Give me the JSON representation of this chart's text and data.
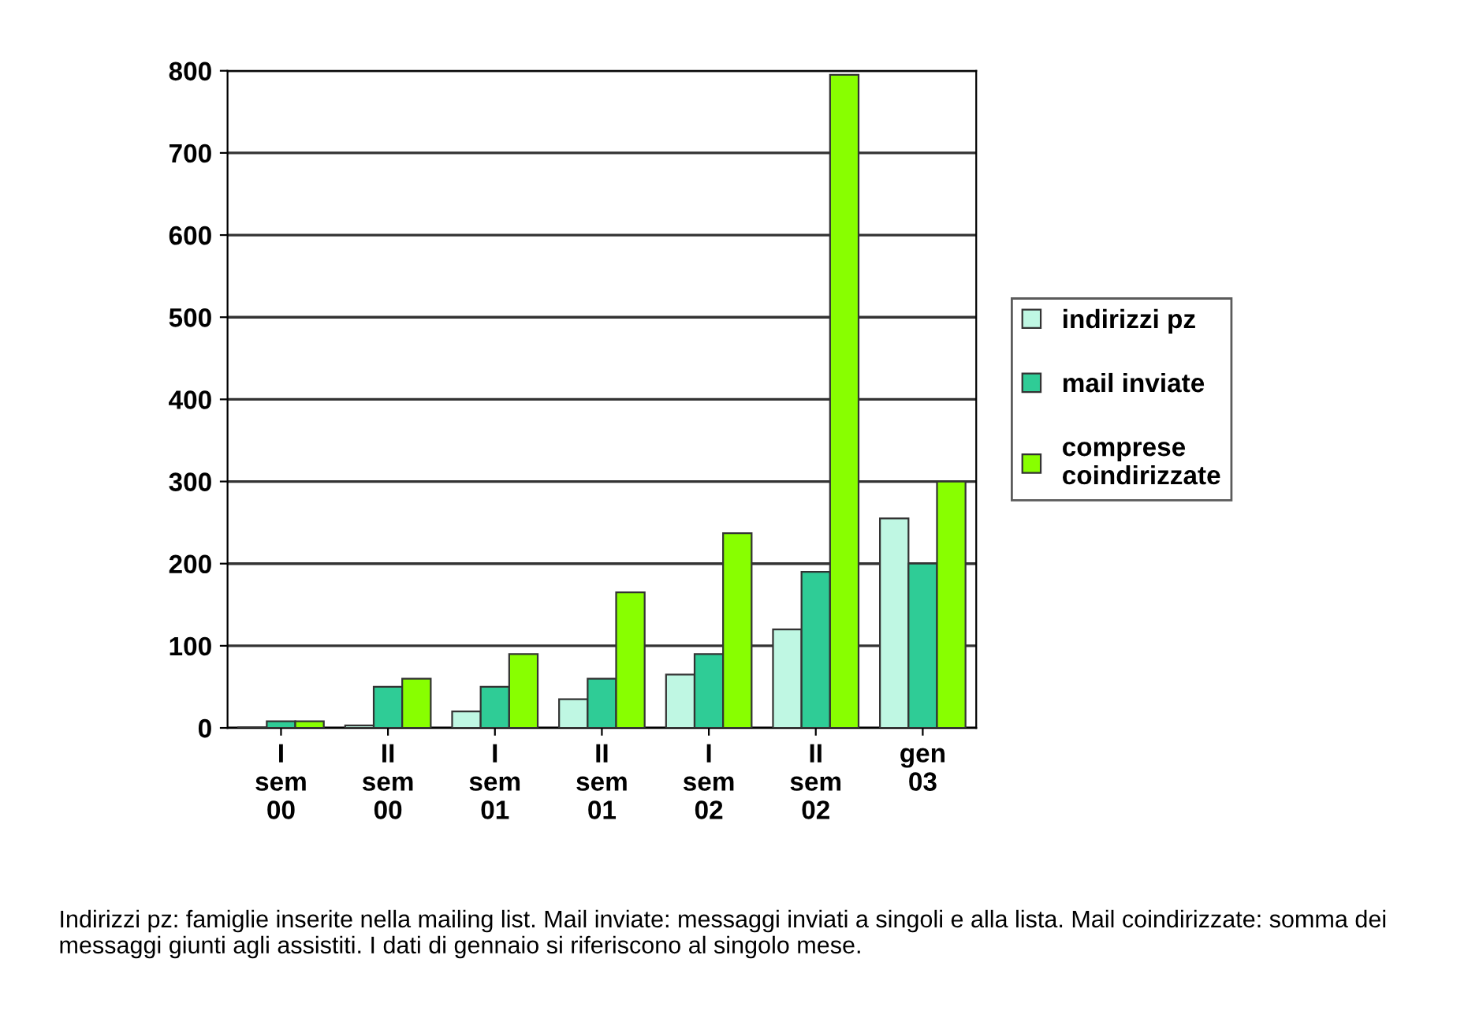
{
  "chart_data": {
    "type": "bar",
    "categories": [
      "I\nsem\n00",
      "II\nsem\n00",
      "I\nsem\n01",
      "II\nsem\n01",
      "I\nsem\n02",
      "II\nsem\n02",
      "gen\n03"
    ],
    "series": [
      {
        "name": "indirizzi pz",
        "color": "#bff7e3",
        "values": [
          1,
          3,
          20,
          35,
          65,
          120,
          255
        ]
      },
      {
        "name": "mail inviate",
        "color": "#2fcc96",
        "values": [
          8,
          50,
          50,
          60,
          90,
          190,
          200
        ]
      },
      {
        "name": "comprese\ncoindirizzate",
        "color": "#88ff00",
        "values": [
          8,
          60,
          90,
          165,
          237,
          795,
          300
        ]
      }
    ],
    "ylim": [
      0,
      800
    ],
    "yticks": [
      0,
      100,
      200,
      300,
      400,
      500,
      600,
      700,
      800
    ],
    "grid": "y",
    "legend": "right",
    "annotations": [
      "Indirizzi pz: famiglie inserite nella mailing list. Mail inviate: messaggi inviati a singoli e alla lista. Mail coindirizzate: somma dei messaggi giunti agli assistiti. I dati di gennaio si riferiscono al singolo mese."
    ]
  }
}
